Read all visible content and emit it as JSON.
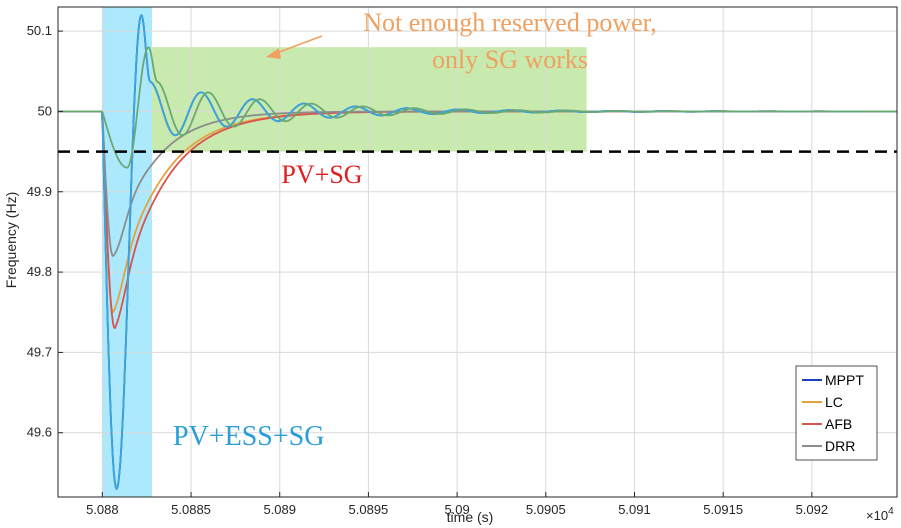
{
  "chart_data": {
    "type": "line",
    "title": "",
    "xlabel": "time (s)",
    "ylabel": "Frequency (Hz)",
    "x_exponent_label": "×10",
    "x_exponent_power": "4",
    "xlim": [
      5.08775,
      5.09248
    ],
    "ylim": [
      49.52,
      50.13
    ],
    "grid": true,
    "x_ticks": [
      5.088,
      5.0885,
      5.089,
      5.0895,
      5.09,
      5.0905,
      5.091,
      5.0915,
      5.092
    ],
    "x_tick_labels": [
      "5.088",
      "5.0885",
      "5.089",
      "5.0895",
      "5.09",
      "5.0905",
      "5.091",
      "5.0915",
      "5.092"
    ],
    "y_ticks": [
      49.6,
      49.7,
      49.8,
      49.9,
      50,
      50.1
    ],
    "y_tick_labels": [
      "49.6",
      "49.7",
      "49.8",
      "49.9",
      "50",
      "50.1"
    ],
    "threshold": {
      "y": 49.95,
      "style": "dashed",
      "color": "#000000"
    },
    "regions": [
      {
        "name": "PV+ESS+SG",
        "x_range": [
          5.088,
          5.08828
        ],
        "y_range": [
          49.52,
          50.13
        ],
        "color": "#9ee5fb"
      },
      {
        "name": "Not enough reserved power, only SG works",
        "x_range": [
          5.08828,
          5.09073
        ],
        "y_range": [
          49.95,
          50.08
        ],
        "color": "#bfe6a0"
      }
    ],
    "series": [
      {
        "name": "MPPT",
        "color": "#1f3fbf",
        "model": "osc",
        "params": {
          "nadir": 49.53,
          "peak": 50.12,
          "tnadir": 5.08808,
          "tpeak": 5.08822,
          "amp": 0.037,
          "period": 0.00029,
          "decay": 0.00065
        }
      },
      {
        "name": "LC",
        "color": "#e3a240",
        "model": "recover",
        "params": {
          "nadir": 49.75,
          "tnadir": 5.08806,
          "tau": 0.00025
        }
      },
      {
        "name": "AFB",
        "color": "#d9534f",
        "model": "recover",
        "params": {
          "nadir": 49.73,
          "tnadir": 5.08807,
          "tau": 0.00025
        }
      },
      {
        "name": "DRR",
        "color": "#8c8c8c",
        "model": "recover",
        "params": {
          "nadir": 49.82,
          "tnadir": 5.08806,
          "tau": 0.00022
        }
      },
      {
        "name": "",
        "color": "#3aa6d9",
        "model": "osc",
        "params": {
          "nadir": 49.53,
          "peak": 50.12,
          "tnadir": 5.08808,
          "tpeak": 5.08822,
          "amp": 0.037,
          "period": 0.00029,
          "decay": 0.00065
        }
      },
      {
        "name": "",
        "color": "#6aa874",
        "model": "osc",
        "params": {
          "nadir": 49.93,
          "peak": 50.08,
          "tnadir": 5.08814,
          "tpeak": 5.08826,
          "amp": 0.037,
          "period": 0.00029,
          "decay": 0.00065
        }
      }
    ],
    "legend": {
      "position": "bottom-right",
      "entries": [
        "MPPT",
        "LC",
        "AFB",
        "DRR"
      ]
    },
    "annotations": [
      {
        "text": "Not enough reserved power,",
        "color": "#f0a060"
      },
      {
        "text": "only SG works",
        "color": "#f0a060"
      },
      {
        "text": "PV+SG",
        "color": "#e02020"
      },
      {
        "text": "PV+ESS+SG",
        "color": "#2a9fd6"
      }
    ]
  }
}
